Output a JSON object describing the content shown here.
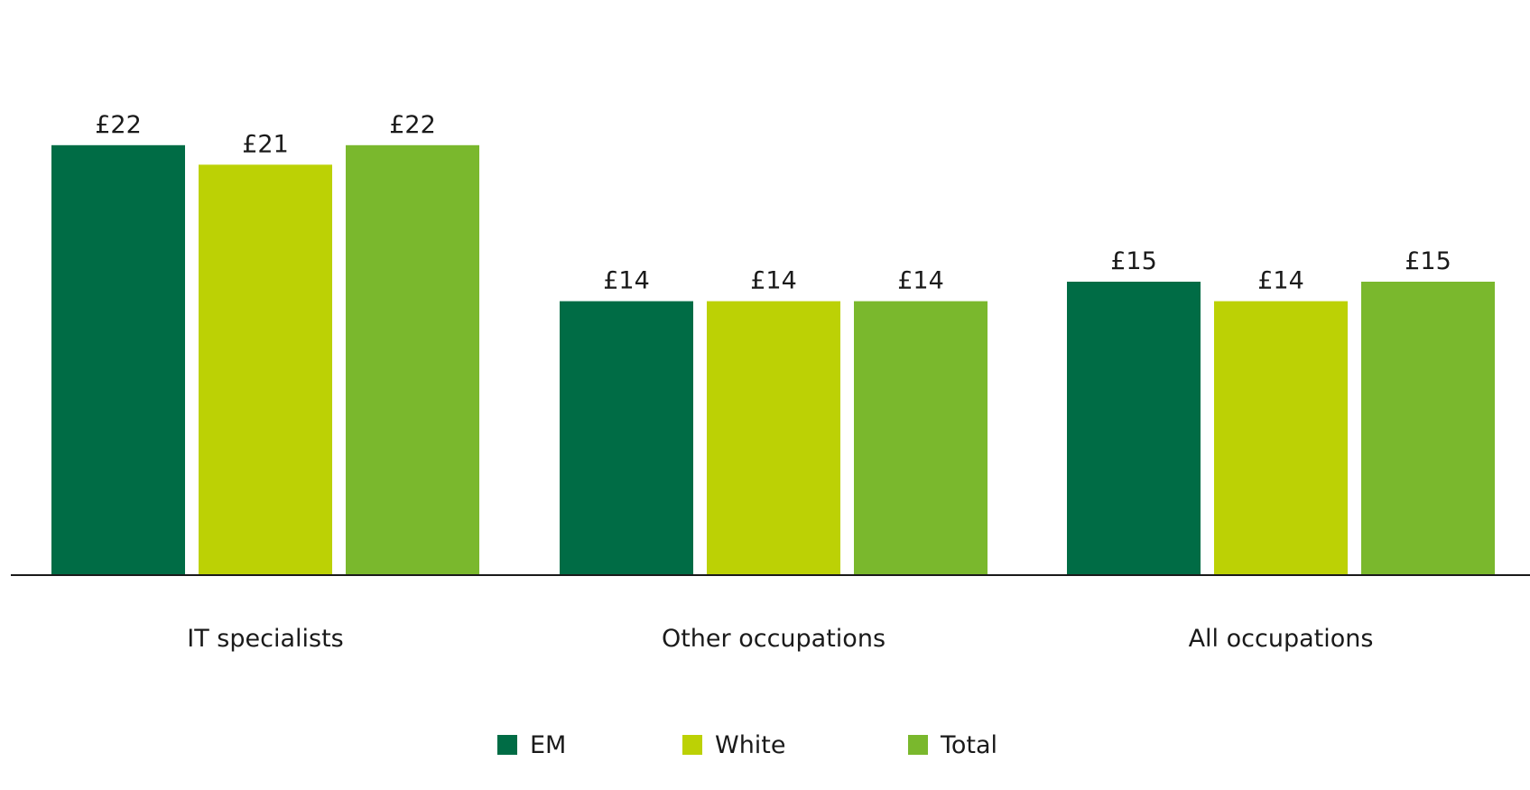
{
  "chart_data": {
    "type": "bar",
    "categories": [
      "IT specialists",
      "Other occupations",
      "All occupations"
    ],
    "series": [
      {
        "name": "EM",
        "color": "#006C45",
        "values": [
          22,
          14,
          15
        ],
        "labels": [
          "£22",
          "£14",
          "£15"
        ]
      },
      {
        "name": "White",
        "color": "#BCD105",
        "values": [
          21,
          14,
          14
        ],
        "labels": [
          "£21",
          "£14",
          "£14"
        ]
      },
      {
        "name": "Total",
        "color": "#7AB82D",
        "values": [
          22,
          14,
          15
        ],
        "labels": [
          "£22",
          "£14",
          "£15"
        ]
      }
    ],
    "ylim": [
      0,
      25
    ],
    "grid": false,
    "legend_position": "bottom"
  }
}
